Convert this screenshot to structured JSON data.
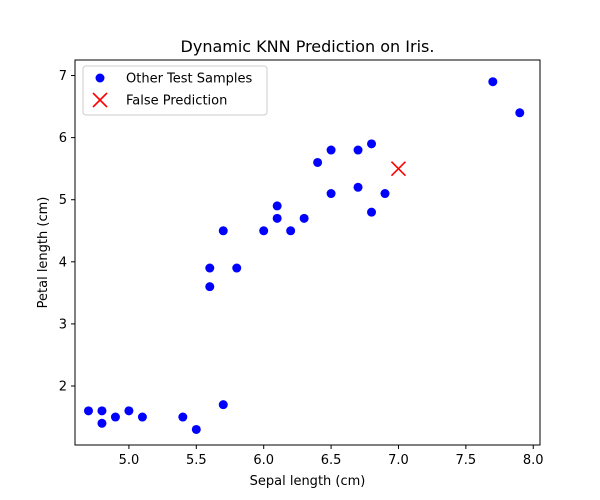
{
  "chart_data": {
    "type": "scatter",
    "title": "Dynamic KNN Prediction on Iris.",
    "xlabel": "Sepal length (cm)",
    "ylabel": "Petal length (cm)",
    "xlim": [
      4.6,
      8.05
    ],
    "ylim": [
      1.05,
      7.25
    ],
    "xticks": [
      5.0,
      5.5,
      6.0,
      6.5,
      7.0,
      7.5,
      8.0
    ],
    "yticks": [
      2,
      3,
      4,
      5,
      6,
      7
    ],
    "xtick_labels": [
      "5.0",
      "5.5",
      "6.0",
      "6.5",
      "7.0",
      "7.5",
      "8.0"
    ],
    "ytick_labels": [
      "2",
      "3",
      "4",
      "5",
      "6",
      "7"
    ],
    "grid": false,
    "legend_position": "top-left",
    "series": [
      {
        "name": "Other Test Samples",
        "marker": "circle",
        "color": "#0000ff",
        "points": [
          [
            4.7,
            1.6
          ],
          [
            4.8,
            1.6
          ],
          [
            4.8,
            1.4
          ],
          [
            4.9,
            1.5
          ],
          [
            5.0,
            1.6
          ],
          [
            5.1,
            1.5
          ],
          [
            5.4,
            1.5
          ],
          [
            5.5,
            1.3
          ],
          [
            5.7,
            1.7
          ],
          [
            5.6,
            3.6
          ],
          [
            5.6,
            3.9
          ],
          [
            5.8,
            3.9
          ],
          [
            5.7,
            4.5
          ],
          [
            6.0,
            4.5
          ],
          [
            6.1,
            4.7
          ],
          [
            6.1,
            4.9
          ],
          [
            6.2,
            4.5
          ],
          [
            6.3,
            4.7
          ],
          [
            6.4,
            5.6
          ],
          [
            6.5,
            5.8
          ],
          [
            6.5,
            5.1
          ],
          [
            6.7,
            5.8
          ],
          [
            6.8,
            5.9
          ],
          [
            6.7,
            5.2
          ],
          [
            6.8,
            4.8
          ],
          [
            6.9,
            5.1
          ],
          [
            7.7,
            6.9
          ],
          [
            7.9,
            6.4
          ]
        ]
      },
      {
        "name": "False Prediction",
        "marker": "x",
        "color": "#ff0000",
        "points": [
          [
            7.0,
            5.5
          ]
        ]
      }
    ]
  }
}
